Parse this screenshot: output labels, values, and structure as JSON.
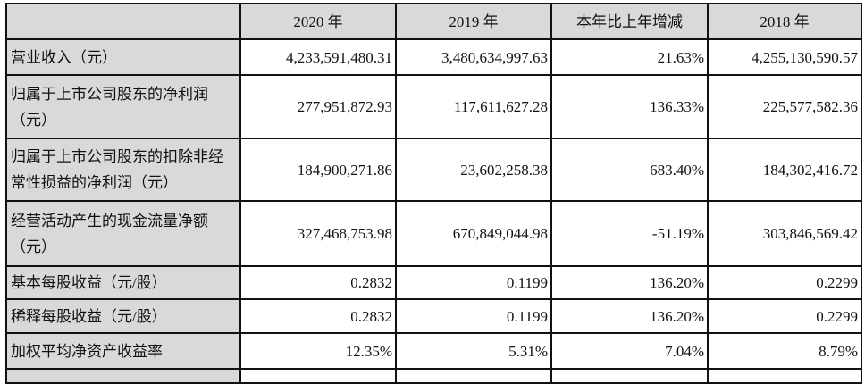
{
  "table": {
    "headers": [
      "",
      "2020 年",
      "2019 年",
      "本年比上年增减",
      "2018 年"
    ],
    "rows": [
      {
        "label": "营业收入（元）",
        "values": [
          "4,233,591,480.31",
          "3,480,634,997.63",
          "21.63%",
          "4,255,130,590.57"
        ]
      },
      {
        "label": "归属于上市公司股东的净利润（元）",
        "values": [
          "277,951,872.93",
          "117,611,627.28",
          "136.33%",
          "225,577,582.36"
        ]
      },
      {
        "label": "归属于上市公司股东的扣除非经常性损益的净利润（元）",
        "values": [
          "184,900,271.86",
          "23,602,258.38",
          "683.40%",
          "184,302,416.72"
        ]
      },
      {
        "label": "经营活动产生的现金流量净额（元）",
        "values": [
          "327,468,753.98",
          "670,849,044.98",
          "-51.19%",
          "303,846,569.42"
        ]
      },
      {
        "label": "基本每股收益（元/股）",
        "values": [
          "0.2832",
          "0.1199",
          "136.20%",
          "0.2299"
        ]
      },
      {
        "label": "稀释每股收益（元/股）",
        "values": [
          "0.2832",
          "0.1199",
          "136.20%",
          "0.2299"
        ]
      },
      {
        "label": "加权平均净资产收益率",
        "values": [
          "12.35%",
          "5.31%",
          "7.04%",
          "8.79%"
        ]
      }
    ]
  }
}
